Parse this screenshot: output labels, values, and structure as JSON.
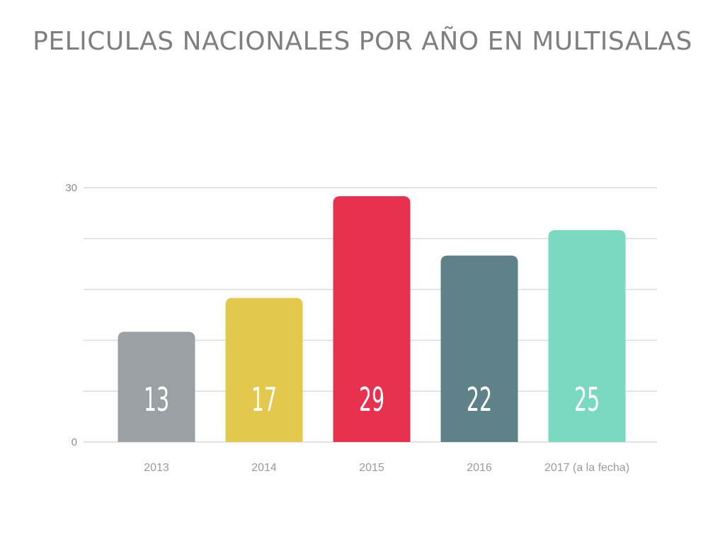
{
  "chart_data": {
    "type": "bar",
    "title": "PELICULAS NACIONALES POR AÑO EN MULTISALAS",
    "categories": [
      "2013",
      "2014",
      "2015",
      "2016",
      "2017 (a la fecha)"
    ],
    "values": [
      13,
      17,
      29,
      22,
      25
    ],
    "colors": [
      "#9aa0a4",
      "#e4c84d",
      "#e8304f",
      "#5e8288",
      "#79d9c1"
    ],
    "ylim": [
      0,
      30
    ],
    "yticks": [
      0,
      30
    ],
    "grid_steps": 5,
    "grid": true,
    "xlabel": "",
    "ylabel": "",
    "legend": "none"
  }
}
